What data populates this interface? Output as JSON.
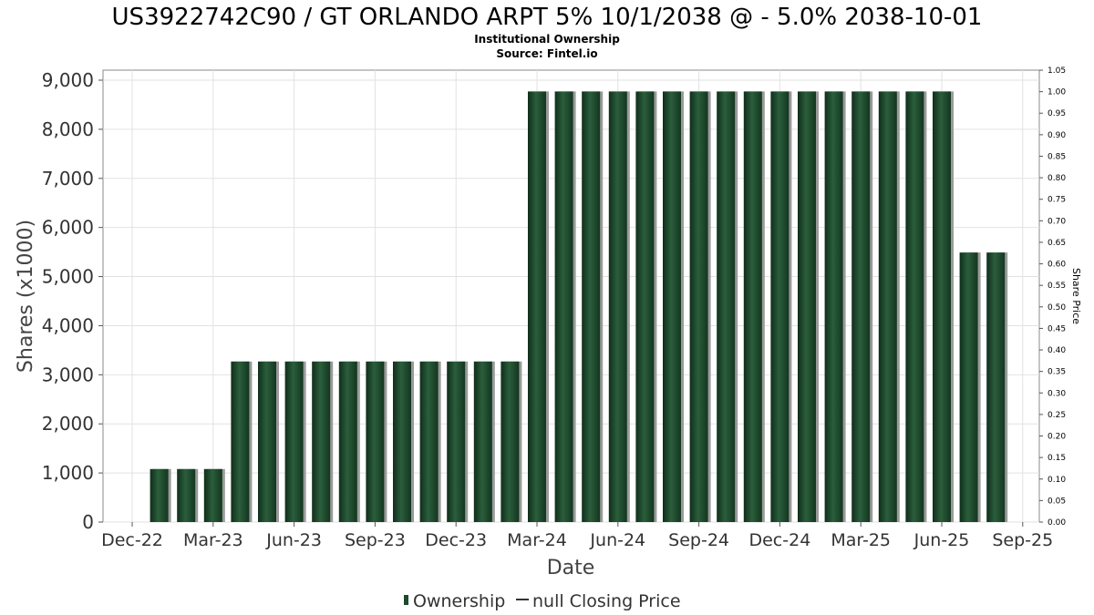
{
  "chart_data": {
    "type": "bar",
    "title": "US3922742C90 / GT ORLANDO ARPT 5% 10/1/2038 @ - 5.0% 2038-10-01",
    "subtitle": "Institutional Ownership",
    "source": "Source: Fintel.io",
    "xlabel": "Date",
    "ylabel": "Shares (x1000)",
    "y2label": "Share Price",
    "ylim": [
      0,
      9200
    ],
    "y2lim": [
      0,
      1.05
    ],
    "xlim": [
      0,
      33
    ],
    "grid": true,
    "x_ticks": [
      {
        "label": "Dec-22",
        "pos": 0
      },
      {
        "label": "Mar-23",
        "pos": 3
      },
      {
        "label": "Jun-23",
        "pos": 6
      },
      {
        "label": "Sep-23",
        "pos": 9
      },
      {
        "label": "Dec-23",
        "pos": 12
      },
      {
        "label": "Mar-24",
        "pos": 15
      },
      {
        "label": "Jun-24",
        "pos": 18
      },
      {
        "label": "Sep-24",
        "pos": 21
      },
      {
        "label": "Dec-24",
        "pos": 24
      },
      {
        "label": "Mar-25",
        "pos": 27
      },
      {
        "label": "Jun-25",
        "pos": 30
      },
      {
        "label": "Sep-25",
        "pos": 33
      }
    ],
    "y_ticks": [
      {
        "label": "0",
        "value": 0
      },
      {
        "label": "1,000",
        "value": 1000
      },
      {
        "label": "2,000",
        "value": 2000
      },
      {
        "label": "3,000",
        "value": 3000
      },
      {
        "label": "4,000",
        "value": 4000
      },
      {
        "label": "5,000",
        "value": 5000
      },
      {
        "label": "6,000",
        "value": 6000
      },
      {
        "label": "7,000",
        "value": 7000
      },
      {
        "label": "8,000",
        "value": 8000
      },
      {
        "label": "9,000",
        "value": 9000
      }
    ],
    "y2_ticks": [
      "0.00",
      "0.05",
      "0.10",
      "0.15",
      "0.20",
      "0.25",
      "0.30",
      "0.35",
      "0.40",
      "0.45",
      "0.50",
      "0.55",
      "0.60",
      "0.65",
      "0.70",
      "0.75",
      "0.80",
      "0.85",
      "0.90",
      "0.95",
      "1.00",
      "1.05"
    ],
    "series": [
      {
        "name": "Ownership",
        "color": "#1e4a2c",
        "x": [
          1,
          2,
          3,
          4,
          5,
          6,
          7,
          8,
          9,
          10,
          11,
          12,
          13,
          14,
          15,
          16,
          17,
          18,
          19,
          20,
          21,
          22,
          23,
          24,
          25,
          26,
          27,
          28,
          29,
          30,
          31,
          32
        ],
        "values": [
          1080,
          1080,
          1080,
          3270,
          3270,
          3270,
          3270,
          3270,
          3270,
          3270,
          3270,
          3270,
          3270,
          3270,
          8770,
          8770,
          8770,
          8770,
          8770,
          8770,
          8770,
          8770,
          8770,
          8770,
          8770,
          8770,
          8770,
          8770,
          8770,
          8770,
          5490,
          5490
        ]
      }
    ],
    "legend": {
      "position": "bottom-center",
      "items": [
        {
          "label": "Ownership",
          "symbol": "bar",
          "color": "#1e4a2c"
        },
        {
          "label": "null Closing Price",
          "symbol": "line",
          "color": "#333333"
        }
      ]
    }
  }
}
